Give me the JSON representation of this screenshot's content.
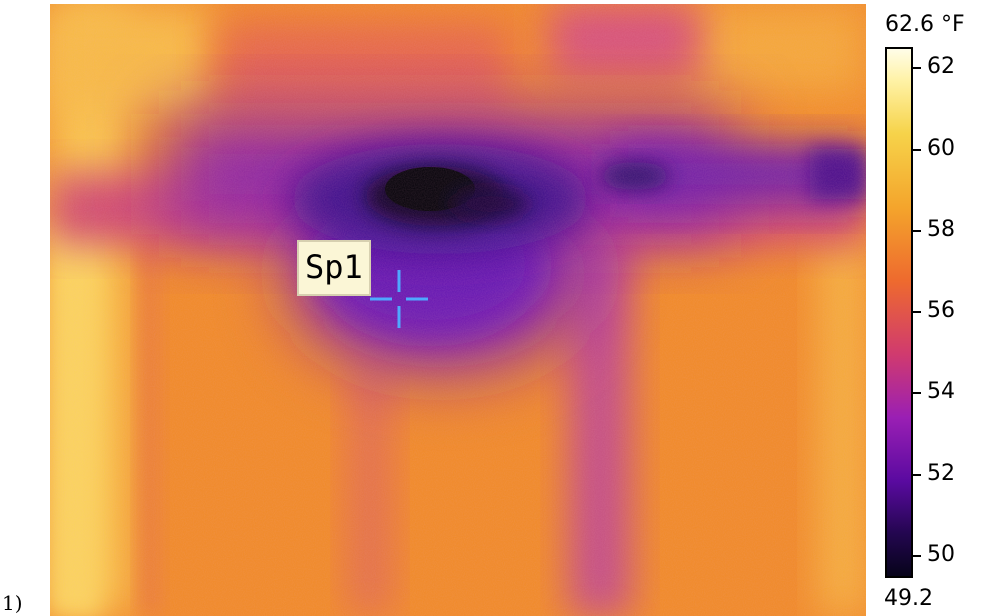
{
  "figure_label": "1)",
  "thermal_image": {
    "spot_label": "Sp1",
    "crosshair_color": "#4fa8ff",
    "palette": "iron",
    "hot_color": "#fff6c4",
    "warm_color": "#f28f22",
    "cool_color": "#7a1ab0",
    "cold_color": "#05020c"
  },
  "temperature_scale": {
    "max_label": "62.6 °F",
    "min_label": "49.2",
    "ticks": [
      "62",
      "60",
      "58",
      "56",
      "54",
      "52",
      "50"
    ]
  }
}
